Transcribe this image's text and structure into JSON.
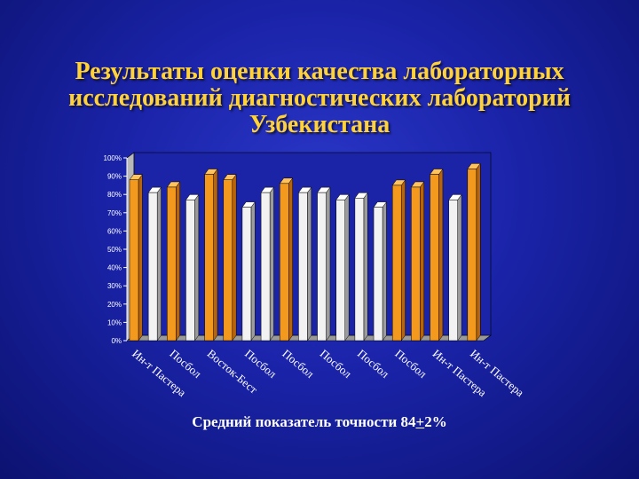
{
  "title": {
    "lines": [
      "Результаты оценки качества лабораторных",
      "исследований диагностических лабораторий",
      "Узбекистана"
    ]
  },
  "footer": {
    "before": "Средний показатель точности 84",
    "pm": "+",
    "after": "2%"
  },
  "chart_data": {
    "type": "bar",
    "ylim": [
      0,
      100
    ],
    "yticks": [
      "0%",
      "10%",
      "20%",
      "30%",
      "40%",
      "50%",
      "60%",
      "70%",
      "80%",
      "90%",
      "100%"
    ],
    "values": [
      88,
      81,
      84,
      77,
      91,
      88,
      73,
      81,
      86,
      81,
      81,
      77,
      78,
      73,
      85,
      84,
      91,
      77,
      94
    ],
    "colors": [
      "orange",
      "white",
      "orange",
      "white",
      "orange",
      "orange",
      "white",
      "white",
      "orange",
      "white",
      "white",
      "white",
      "white",
      "white",
      "orange",
      "orange",
      "orange",
      "white",
      "orange"
    ],
    "category_labels": [
      "Ин-т Пастера",
      "Посбол",
      "Восток-Бест",
      "Посбол",
      "Посбол",
      "Посбол",
      "Посбол",
      "Посбол",
      "Ин-т Пастера",
      "Ин-т Пастера"
    ],
    "palette": {
      "orange": "#f39a1e",
      "white": "#f2f2f2"
    }
  }
}
